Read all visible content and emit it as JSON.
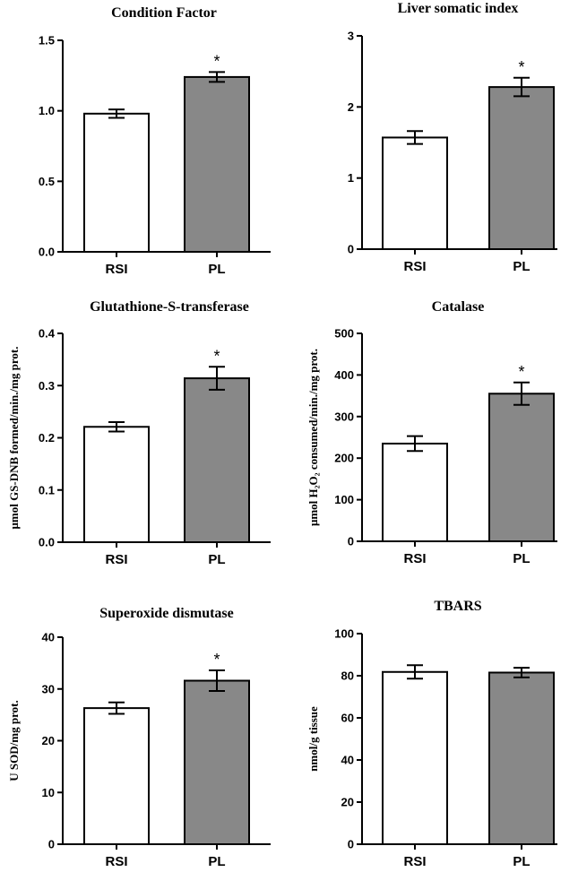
{
  "chart_data": [
    {
      "type": "bar",
      "title": "Condition Factor",
      "ylabel": "",
      "categories": [
        "RSI",
        "PL"
      ],
      "values": [
        0.98,
        1.24
      ],
      "errors": [
        0.03,
        0.035
      ],
      "significance": [
        "",
        "*"
      ],
      "ylim": [
        0,
        1.5
      ],
      "yticks": [
        "0.0",
        "0.5",
        "1.0",
        "1.5"
      ],
      "bar_colors": [
        "#ffffff",
        "#888888"
      ]
    },
    {
      "type": "bar",
      "title": "Liver somatic index",
      "ylabel": "",
      "categories": [
        "RSI",
        "PL"
      ],
      "values": [
        1.57,
        2.28
      ],
      "errors": [
        0.09,
        0.13
      ],
      "significance": [
        "",
        "*"
      ],
      "ylim": [
        0,
        3
      ],
      "yticks": [
        "0",
        "1",
        "2",
        "3"
      ],
      "bar_colors": [
        "#ffffff",
        "#888888"
      ]
    },
    {
      "type": "bar",
      "title": "Glutathione-S-transferase",
      "ylabel": "μmol GS-DNB formed/min./mg prot.",
      "categories": [
        "RSI",
        "PL"
      ],
      "values": [
        0.221,
        0.314
      ],
      "errors": [
        0.009,
        0.022
      ],
      "significance": [
        "",
        "*"
      ],
      "ylim": [
        0,
        0.4
      ],
      "yticks": [
        "0.0",
        "0.1",
        "0.2",
        "0.3",
        "0.4"
      ],
      "bar_colors": [
        "#ffffff",
        "#888888"
      ]
    },
    {
      "type": "bar",
      "title": "Catalase",
      "ylabel": "μmol H₂O₂ consumed/min./mg prot.",
      "categories": [
        "RSI",
        "PL"
      ],
      "values": [
        235,
        355
      ],
      "errors": [
        18,
        27
      ],
      "significance": [
        "",
        "*"
      ],
      "ylim": [
        0,
        500
      ],
      "yticks": [
        "0",
        "100",
        "200",
        "300",
        "400",
        "500"
      ],
      "bar_colors": [
        "#ffffff",
        "#888888"
      ]
    },
    {
      "type": "bar",
      "title": "Superoxide dismutase",
      "ylabel": "U SOD/mg prot.",
      "categories": [
        "RSI",
        "PL"
      ],
      "values": [
        26.3,
        31.6
      ],
      "errors": [
        1.1,
        2.0
      ],
      "significance": [
        "",
        "*"
      ],
      "ylim": [
        0,
        40
      ],
      "yticks": [
        "0",
        "10",
        "20",
        "30",
        "40"
      ],
      "bar_colors": [
        "#ffffff",
        "#888888"
      ]
    },
    {
      "type": "bar",
      "title": "TBARS",
      "ylabel": "nmol/g tissue",
      "categories": [
        "RSI",
        "PL"
      ],
      "values": [
        81.8,
        81.5
      ],
      "errors": [
        3.2,
        2.3
      ],
      "significance": [
        "",
        ""
      ],
      "ylim": [
        0,
        100
      ],
      "yticks": [
        "0",
        "20",
        "40",
        "60",
        "80",
        "100"
      ],
      "bar_colors": [
        "#ffffff",
        "#888888"
      ]
    }
  ]
}
